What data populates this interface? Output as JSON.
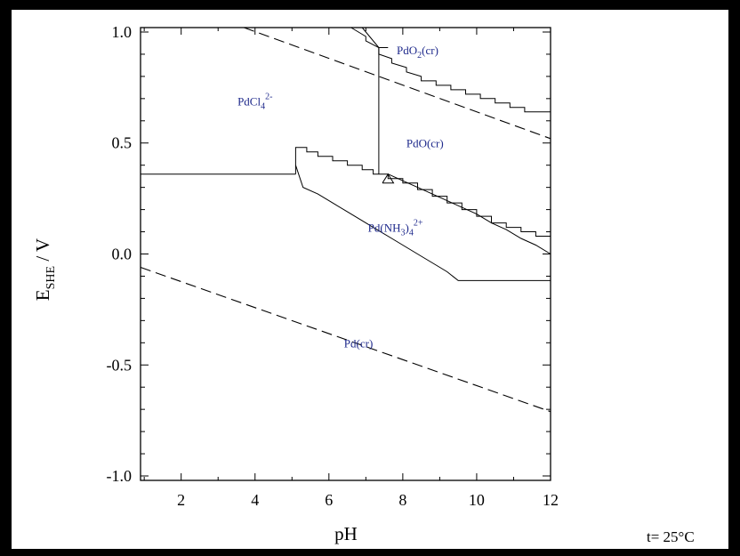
{
  "chart_data": {
    "type": "line",
    "title": "",
    "xlabel": "pH",
    "ylabel": {
      "main": "E",
      "subscript": "SHE",
      "suffix": " / V"
    },
    "xlim": [
      0.9,
      12
    ],
    "ylim": [
      -1.02,
      1.02
    ],
    "x_ticks": [
      2,
      4,
      6,
      8,
      10,
      12
    ],
    "y_ticks": [
      -1.0,
      -0.5,
      0.0,
      0.5,
      1.0
    ],
    "y_tick_labels": [
      "-1.0",
      "-0.5",
      "0.0",
      "0.5",
      "1.0"
    ],
    "annotation": "t= 25°C",
    "grid": false,
    "regions": [
      {
        "name": "pdcl4",
        "base": "PdCl",
        "sub": "4",
        "sup": "2-",
        "x": 4.0,
        "y": 0.67
      },
      {
        "name": "pdo2",
        "base": "PdO",
        "sub": "2",
        "suffix": "(cr)",
        "x": 8.4,
        "y": 0.9
      },
      {
        "name": "pdo",
        "base": "PdO(cr)",
        "x": 8.6,
        "y": 0.48
      },
      {
        "name": "pdnh3",
        "base": "Pd(NH",
        "sub": "3",
        "mid": ")",
        "sub2": "4",
        "sup": "2+",
        "x": 7.8,
        "y": 0.1
      },
      {
        "name": "pd",
        "base": "Pd(cr)",
        "x": 6.8,
        "y": -0.42
      }
    ],
    "series": [
      {
        "style": "dashed",
        "x": [
          3.7,
          12
        ],
        "y": [
          1.02,
          0.52
        ]
      },
      {
        "style": "dashed",
        "x": [
          0.9,
          12
        ],
        "y": [
          -0.06,
          -0.71
        ]
      },
      {
        "style": "solid",
        "x": [
          0.9,
          5.1
        ],
        "y": [
          0.36,
          0.36
        ]
      },
      {
        "style": "solid",
        "x": [
          7.35,
          7.35
        ],
        "y": [
          0.36,
          0.93
        ]
      },
      {
        "style": "solid",
        "x": [
          6.6,
          7.0,
          7.0,
          7.35,
          7.35,
          7.7,
          7.7,
          8.1,
          8.1,
          8.5,
          8.5,
          8.9,
          8.9,
          9.3,
          9.3,
          9.7,
          9.7,
          10.1,
          10.1,
          10.5,
          10.5,
          10.9,
          10.9,
          11.3,
          11.3,
          11.6,
          11.6,
          12
        ],
        "y": [
          1.02,
          0.98,
          0.96,
          0.93,
          0.9,
          0.88,
          0.86,
          0.84,
          0.82,
          0.8,
          0.78,
          0.78,
          0.76,
          0.76,
          0.74,
          0.74,
          0.72,
          0.72,
          0.7,
          0.7,
          0.68,
          0.68,
          0.66,
          0.66,
          0.64,
          0.64,
          0.64,
          0.64
        ]
      },
      {
        "style": "solid",
        "x": [
          6.9,
          7.35,
          7.35,
          7.6
        ],
        "y": [
          1.02,
          0.93,
          0.93,
          0.93
        ]
      },
      {
        "style": "solid",
        "x": [
          5.1,
          5.1,
          5.4,
          5.4,
          5.7,
          5.7,
          6.1,
          6.1,
          6.5,
          6.5,
          6.9,
          6.9,
          7.2,
          7.2,
          7.6,
          7.6,
          8.0,
          8.0,
          8.4,
          8.4,
          8.8,
          8.8,
          9.2,
          9.2,
          9.6,
          9.6,
          10.0,
          10.0,
          10.4,
          10.4,
          10.8,
          10.8,
          11.2,
          11.2,
          11.6,
          11.6,
          12
        ],
        "y": [
          0.36,
          0.48,
          0.48,
          0.46,
          0.46,
          0.44,
          0.44,
          0.42,
          0.42,
          0.4,
          0.4,
          0.38,
          0.38,
          0.36,
          0.36,
          0.34,
          0.34,
          0.32,
          0.32,
          0.29,
          0.29,
          0.26,
          0.26,
          0.23,
          0.23,
          0.2,
          0.2,
          0.17,
          0.17,
          0.14,
          0.14,
          0.12,
          0.12,
          0.1,
          0.1,
          0.08,
          0.08
        ]
      },
      {
        "style": "solid",
        "x": [
          5.1,
          5.3,
          5.3,
          5.7,
          5.7,
          6.1,
          6.1,
          6.5,
          6.5,
          6.9,
          6.9,
          7.3,
          7.3,
          7.7,
          7.7,
          8.1,
          8.1,
          8.5,
          8.5,
          8.9,
          8.9,
          9.2,
          9.2,
          9.5,
          9.5,
          12
        ],
        "y": [
          0.4,
          0.3,
          0.3,
          0.27,
          0.27,
          0.23,
          0.23,
          0.19,
          0.19,
          0.15,
          0.15,
          0.11,
          0.11,
          0.07,
          0.07,
          0.03,
          0.03,
          -0.01,
          -0.01,
          -0.05,
          -0.05,
          -0.08,
          -0.08,
          -0.12,
          -0.12,
          -0.12
        ]
      },
      {
        "style": "solid",
        "x": [
          7.6,
          8.0,
          8.0,
          8.4,
          8.4,
          8.8,
          8.8,
          9.2,
          9.2,
          9.6,
          9.6,
          10.0,
          10.0,
          10.4,
          10.4,
          10.8,
          10.8,
          11.2,
          11.2,
          11.6,
          11.6,
          12
        ],
        "y": [
          0.36,
          0.33,
          0.33,
          0.3,
          0.3,
          0.27,
          0.27,
          0.24,
          0.24,
          0.21,
          0.21,
          0.18,
          0.18,
          0.14,
          0.14,
          0.11,
          0.11,
          0.07,
          0.07,
          0.04,
          0.04,
          0.0
        ]
      },
      {
        "style": "solid",
        "x": [
          7.45,
          7.75,
          7.6,
          7.45
        ],
        "y": [
          0.32,
          0.32,
          0.36,
          0.32
        ]
      }
    ]
  }
}
